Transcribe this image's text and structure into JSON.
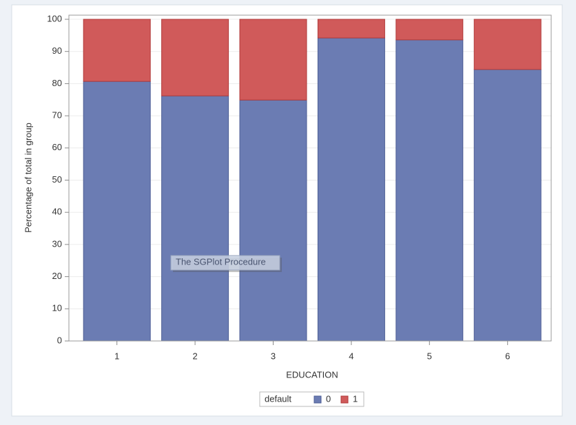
{
  "chart_data": {
    "type": "stacked_bar",
    "x_label": "EDUCATION",
    "y_label": "Percentage of total in group",
    "categories": [
      "1",
      "2",
      "3",
      "4",
      "5",
      "6"
    ],
    "series": [
      {
        "name": "0",
        "color": "#6b7cb3",
        "values": [
          80.7,
          76.2,
          74.9,
          94.2,
          93.6,
          84.4
        ]
      },
      {
        "name": "1",
        "color": "#d05a5a",
        "values": [
          19.3,
          23.8,
          25.1,
          5.8,
          6.4,
          15.6
        ]
      }
    ],
    "legend_title": "default",
    "legend": "bottom",
    "ylim": [
      0,
      100
    ],
    "yticks": [
      0,
      10,
      20,
      30,
      40,
      50,
      60,
      70,
      80,
      90,
      100
    ],
    "grid": true,
    "tooltip": "The SGPlot Procedure"
  }
}
